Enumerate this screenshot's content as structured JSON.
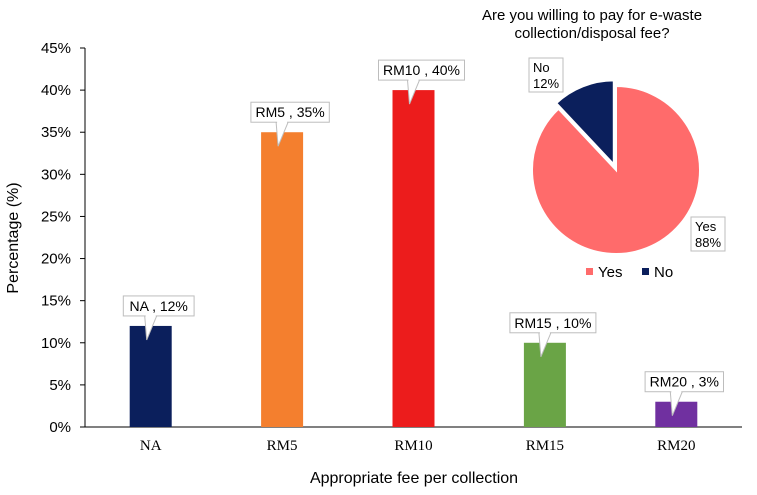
{
  "chart_data": [
    {
      "type": "bar",
      "categories": [
        "NA",
        "RM5",
        "RM10",
        "RM15",
        "RM20"
      ],
      "values": [
        12,
        35,
        40,
        10,
        3
      ],
      "colors": [
        "#0b1f5c",
        "#f47f2e",
        "#ec1c1c",
        "#6aa446",
        "#7030a0"
      ],
      "data_labels": [
        "NA , 12%",
        "RM5 , 35%",
        "RM10 , 40%",
        "RM15 , 10%",
        "RM20 , 3%"
      ],
      "xlabel": "Appropriate fee per collection",
      "ylabel": "Percentage (%)",
      "ylim": [
        0,
        45
      ],
      "yticks": [
        "0%",
        "5%",
        "10%",
        "15%",
        "20%",
        "25%",
        "30%",
        "35%",
        "40%",
        "45%"
      ],
      "grid": false
    },
    {
      "type": "pie",
      "title_lines": [
        "Are you willing to pay for e-waste",
        "collection/disposal fee?"
      ],
      "slices": [
        {
          "label": "Yes",
          "value": 88,
          "pct": "88%",
          "color": "#ff6b6b"
        },
        {
          "label": "No",
          "value": 12,
          "pct": "12%",
          "color": "#0b1f5c"
        }
      ],
      "legend": [
        "Yes",
        "No"
      ],
      "legend_position": "bottom"
    }
  ]
}
